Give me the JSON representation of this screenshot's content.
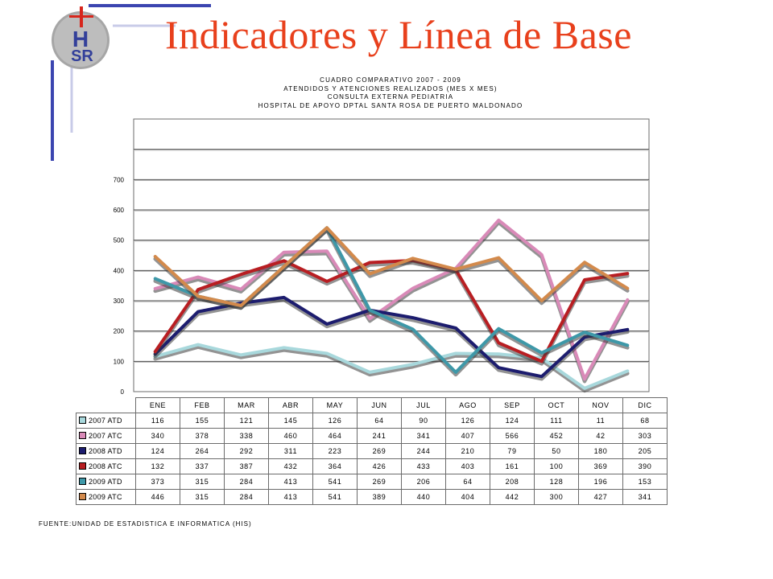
{
  "slide": {
    "title": "Indicadores y Línea de Base",
    "logo_text": "HSR"
  },
  "chart_data": {
    "type": "line",
    "title_lines": [
      "CUADRO COMPARATIVO 2007 - 2009",
      "ATENDIDOS Y ATENCIONES  REALIZADOS (MES X MES)",
      "CONSULTA EXTERNA PEDIATRIA",
      "HOSPITAL DE APOYO DPTAL SANTA ROSA DE PUERTO MALDONADO"
    ],
    "categories": [
      "ENE",
      "FEB",
      "MAR",
      "ABR",
      "MAY",
      "JUN",
      "JUL",
      "AGO",
      "SEP",
      "OCT",
      "NOV",
      "DIC"
    ],
    "yticks": [
      "0",
      "100",
      "200",
      "300",
      "400",
      "500",
      "600",
      "700"
    ],
    "ylim": [
      0,
      900
    ],
    "grid": true,
    "series": [
      {
        "name": "2007 ATD",
        "color": "#a8d8dc",
        "values": [
          116,
          155,
          121,
          145,
          126,
          64,
          90,
          126,
          124,
          111,
          11,
          68
        ]
      },
      {
        "name": "2007 ATC",
        "color": "#d98ab8",
        "values": [
          340,
          378,
          338,
          460,
          464,
          241,
          341,
          407,
          566,
          452,
          42,
          303
        ]
      },
      {
        "name": "2008 ATD",
        "color": "#1c1c6e",
        "values": [
          124,
          264,
          292,
          311,
          223,
          269,
          244,
          210,
          79,
          50,
          180,
          205
        ]
      },
      {
        "name": "2008 ATC",
        "color": "#b81e22",
        "values": [
          132,
          337,
          387,
          432,
          364,
          426,
          433,
          403,
          161,
          100,
          369,
          390
        ]
      },
      {
        "name": "2009 ATD",
        "color": "#3e98a8",
        "values": [
          373,
          315,
          284,
          413,
          541,
          269,
          206,
          64,
          208,
          128,
          196,
          153
        ]
      },
      {
        "name": "2009 ATC",
        "color": "#d38a4c",
        "values": [
          446,
          315,
          284,
          413,
          541,
          389,
          440,
          404,
          442,
          300,
          427,
          341
        ]
      }
    ]
  },
  "source_note": "FUENTE:UNIDAD DE ESTADISTICA E INFORMATICA (HIS)"
}
